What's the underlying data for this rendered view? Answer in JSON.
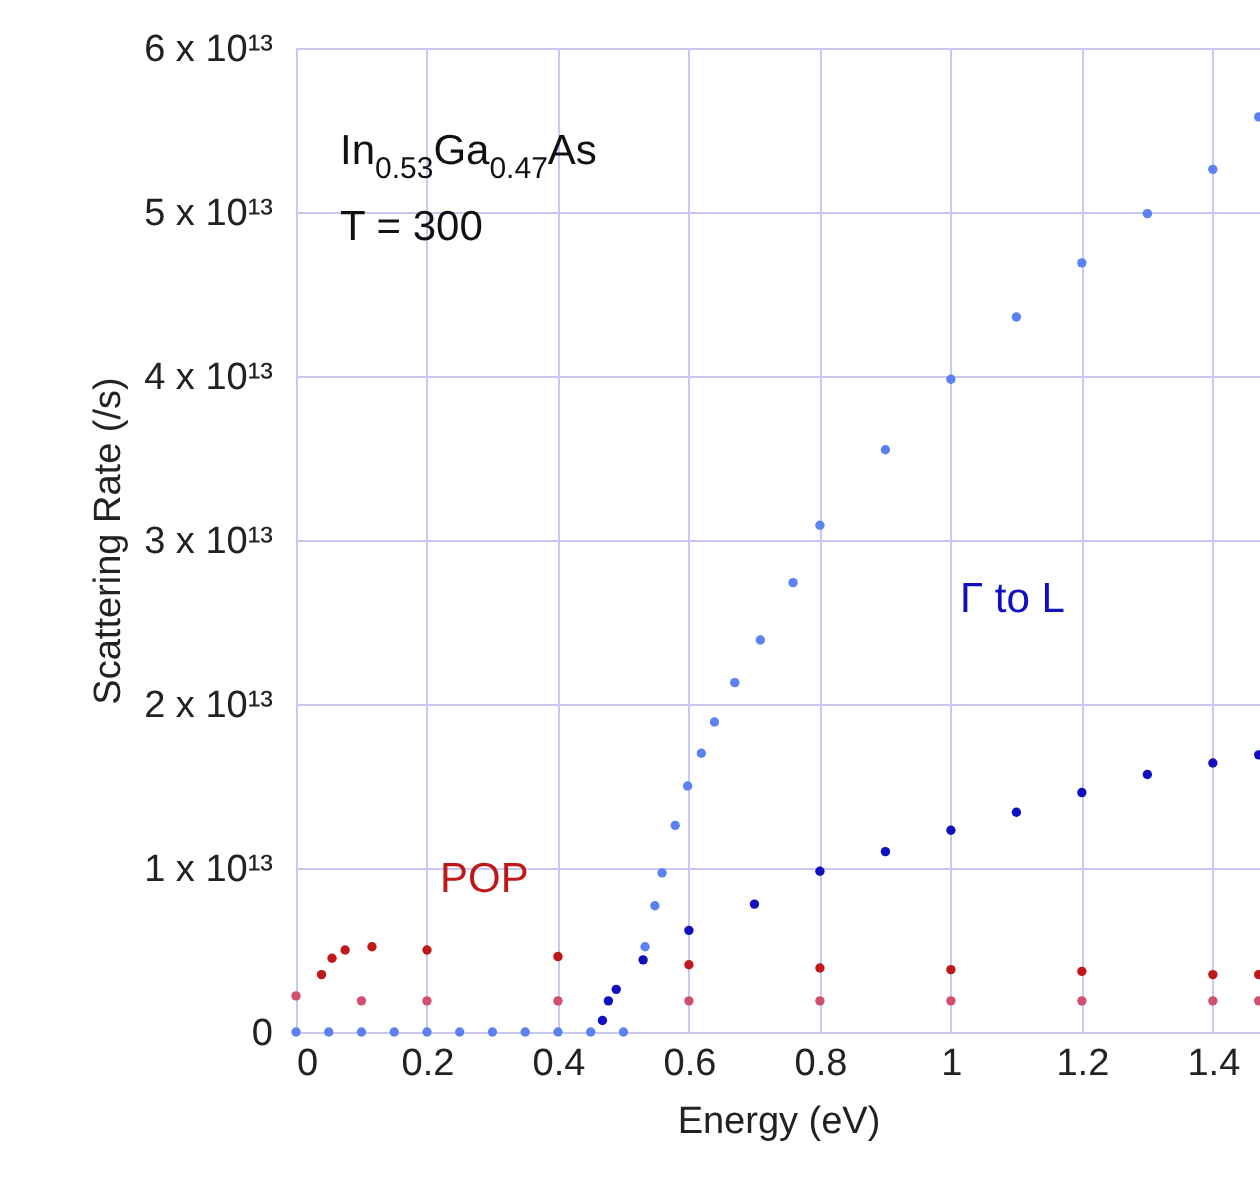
{
  "chart_data": {
    "type": "scatter",
    "xlabel": "Energy (eV)",
    "ylabel": "Scattering Rate (/s)",
    "xlim": [
      0,
      1.472
    ],
    "ylim": [
      0,
      60000000000000.0
    ],
    "xticks": [
      0,
      0.2,
      0.4,
      0.6,
      0.8,
      1,
      1.2,
      1.4
    ],
    "yticks": [
      0,
      {
        "value": 10000000000000.0,
        "label": "1 x 10¹³"
      },
      {
        "value": 20000000000000.0,
        "label": "2 x 10¹³"
      },
      {
        "value": 30000000000000.0,
        "label": "3 x 10¹³"
      },
      {
        "value": 40000000000000.0,
        "label": "4 x 10¹³"
      },
      {
        "value": 50000000000000.0,
        "label": "5 x 10¹³"
      },
      {
        "value": 60000000000000.0,
        "label": "6 x 10¹³"
      }
    ],
    "grid": true,
    "marker": "circle",
    "series": [
      {
        "color": "#1010c0",
        "x": [
          0.468,
          0.477,
          0.489,
          0.53,
          0.6,
          0.7,
          0.8,
          0.9,
          1.0,
          1.1,
          1.2,
          1.3,
          1.4,
          1.47
        ],
        "values": [
          700000000000.0,
          1900000000000.0,
          2600000000000.0,
          4400000000000.0,
          6200000000000.0,
          7800000000000.0,
          9800000000000.0,
          11000000000000.0,
          12300000000000.0,
          13400000000000.0,
          14600000000000.0,
          15700000000000.0,
          16400000000000.0,
          16900000000000.0
        ]
      },
      {
        "color": "#c01818",
        "x": [
          0.039,
          0.055,
          0.075,
          0.116,
          0.2,
          0.4,
          0.6,
          0.8,
          1.0,
          1.2,
          1.4,
          1.47
        ],
        "values": [
          3500000000000.0,
          4500000000000.0,
          5000000000000.0,
          5200000000000.0,
          5000000000000.0,
          4600000000000.0,
          4100000000000.0,
          3900000000000.0,
          3800000000000.0,
          3700000000000.0,
          3500000000000.0,
          3500000000000.0
        ]
      },
      {
        "color": "#5b82f0",
        "x": [
          0,
          0.05,
          0.1,
          0.15,
          0.2,
          0.25,
          0.3,
          0.35,
          0.4,
          0.45,
          0.5,
          0.533,
          0.548,
          0.559,
          0.579,
          0.598,
          0.619,
          0.639,
          0.67,
          0.709,
          0.759,
          0.8,
          0.9,
          1.0,
          1.1,
          1.2,
          1.3,
          1.4,
          1.47
        ],
        "values": [
          0,
          0,
          0,
          0,
          0,
          0,
          0,
          0,
          0,
          0,
          0,
          5200000000000.0,
          7700000000000.0,
          9700000000000.0,
          12600000000000.0,
          15000000000000.0,
          17000000000000.0,
          18900000000000.0,
          21300000000000.0,
          23900000000000.0,
          27400000000000.0,
          30900000000000.0,
          35500000000000.0,
          39800000000000.0,
          43600000000000.0,
          46900000000000.0,
          49900000000000.0,
          52600000000000.0,
          55800000000000.0
        ]
      },
      {
        "color": "#d05070",
        "x": [
          0,
          0.1,
          0.2,
          0.4,
          0.6,
          0.8,
          1.0,
          1.2,
          1.4,
          1.47
        ],
        "values": [
          2200000000000.0,
          1900000000000.0,
          1900000000000.0,
          1900000000000.0,
          1900000000000.0,
          1900000000000.0,
          1900000000000.0,
          1900000000000.0,
          1900000000000.0,
          1900000000000.0
        ]
      }
    ],
    "annotations": [
      "Γ to L",
      "POP",
      "In$_{0.53}$Ga$_{0.47}$As",
      "T = 300"
    ]
  }
}
